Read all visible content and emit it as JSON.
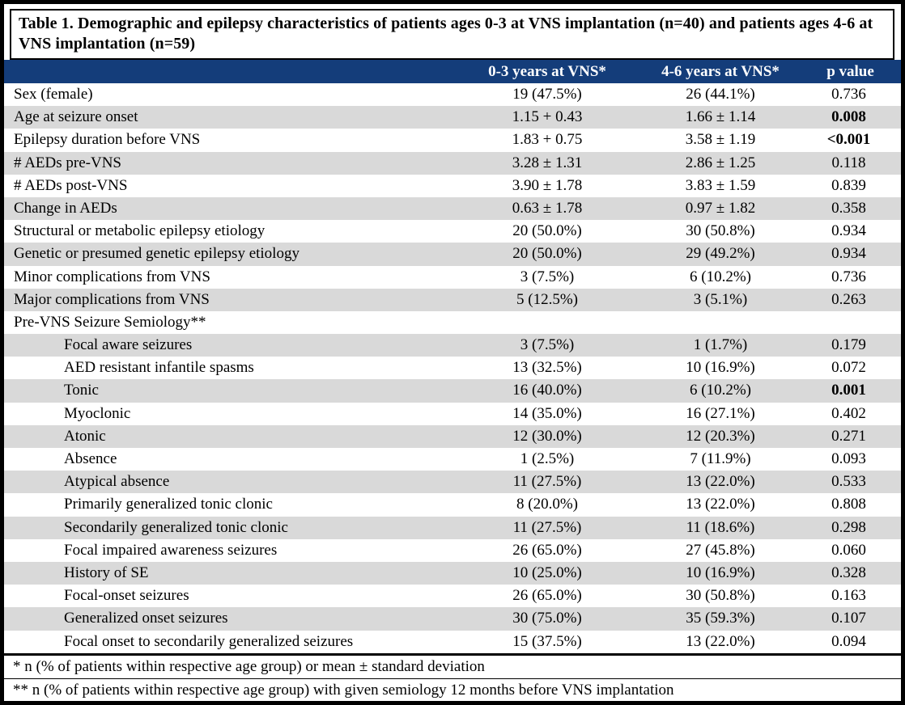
{
  "title": "Table 1. Demographic and epilepsy characteristics of patients ages 0-3 at VNS implantation (n=40) and patients ages 4-6 at VNS implantation (n=59)",
  "colors": {
    "header_bg": "#143D7A",
    "header_text": "#FFFFFF",
    "shaded_row_bg": "#D9D9D9",
    "border": "#000000"
  },
  "header": {
    "col_label": "",
    "col1": "0-3 years at VNS*",
    "col2": "4-6 years at VNS*",
    "col3": "p value"
  },
  "rows": [
    {
      "label": "Sex (female)",
      "indent": false,
      "shaded": false,
      "v1": "19 (47.5%)",
      "v2": "26 (44.1%)",
      "p": "0.736",
      "bold_p": false
    },
    {
      "label": "Age at seizure onset",
      "indent": false,
      "shaded": true,
      "v1": "1.15 + 0.43",
      "v2": "1.66 ± 1.14",
      "p": "0.008",
      "bold_p": true
    },
    {
      "label": "Epilepsy duration before VNS",
      "indent": false,
      "shaded": false,
      "v1": "1.83 + 0.75",
      "v2": "3.58 ± 1.19",
      "p": "<0.001",
      "bold_p": true
    },
    {
      "label": "# AEDs pre-VNS",
      "indent": false,
      "shaded": true,
      "v1": "3.28 ± 1.31",
      "v2": "2.86 ± 1.25",
      "p": "0.118",
      "bold_p": false
    },
    {
      "label": "# AEDs post-VNS",
      "indent": false,
      "shaded": false,
      "v1": "3.90 ± 1.78",
      "v2": "3.83 ± 1.59",
      "p": "0.839",
      "bold_p": false
    },
    {
      "label": "Change in AEDs",
      "indent": false,
      "shaded": true,
      "v1": "0.63 ± 1.78",
      "v2": "0.97 ± 1.82",
      "p": "0.358",
      "bold_p": false
    },
    {
      "label": "Structural or metabolic epilepsy etiology",
      "indent": false,
      "shaded": false,
      "v1": "20 (50.0%)",
      "v2": "30 (50.8%)",
      "p": "0.934",
      "bold_p": false
    },
    {
      "label": "Genetic or presumed genetic epilepsy etiology",
      "indent": false,
      "shaded": true,
      "v1": "20 (50.0%)",
      "v2": "29 (49.2%)",
      "p": "0.934",
      "bold_p": false
    },
    {
      "label": "Minor complications from VNS",
      "indent": false,
      "shaded": false,
      "v1": "3 (7.5%)",
      "v2": "6 (10.2%)",
      "p": "0.736",
      "bold_p": false
    },
    {
      "label": "Major complications from VNS",
      "indent": false,
      "shaded": true,
      "v1": "5 (12.5%)",
      "v2": "3 (5.1%)",
      "p": "0.263",
      "bold_p": false
    },
    {
      "label": "Pre-VNS Seizure Semiology**",
      "indent": false,
      "shaded": false,
      "v1": "",
      "v2": "",
      "p": "",
      "bold_p": false
    },
    {
      "label": "Focal aware seizures",
      "indent": true,
      "shaded": true,
      "v1": "3 (7.5%)",
      "v2": "1 (1.7%)",
      "p": "0.179",
      "bold_p": false
    },
    {
      "label": "AED resistant infantile spasms",
      "indent": true,
      "shaded": false,
      "v1": "13 (32.5%)",
      "v2": "10 (16.9%)",
      "p": "0.072",
      "bold_p": false
    },
    {
      "label": "Tonic",
      "indent": true,
      "shaded": true,
      "v1": "16 (40.0%)",
      "v2": "6 (10.2%)",
      "p": "0.001",
      "bold_p": true
    },
    {
      "label": "Myoclonic",
      "indent": true,
      "shaded": false,
      "v1": "14 (35.0%)",
      "v2": "16 (27.1%)",
      "p": "0.402",
      "bold_p": false
    },
    {
      "label": "Atonic",
      "indent": true,
      "shaded": true,
      "v1": "12 (30.0%)",
      "v2": "12 (20.3%)",
      "p": "0.271",
      "bold_p": false
    },
    {
      "label": "Absence",
      "indent": true,
      "shaded": false,
      "v1": "1 (2.5%)",
      "v2": "7 (11.9%)",
      "p": "0.093",
      "bold_p": false
    },
    {
      "label": "Atypical absence",
      "indent": true,
      "shaded": true,
      "v1": "11 (27.5%)",
      "v2": "13 (22.0%)",
      "p": "0.533",
      "bold_p": false
    },
    {
      "label": "Primarily generalized tonic clonic",
      "indent": true,
      "shaded": false,
      "v1": "8 (20.0%)",
      "v2": "13 (22.0%)",
      "p": "0.808",
      "bold_p": false
    },
    {
      "label": "Secondarily generalized tonic clonic",
      "indent": true,
      "shaded": true,
      "v1": "11 (27.5%)",
      "v2": "11 (18.6%)",
      "p": "0.298",
      "bold_p": false
    },
    {
      "label": "Focal impaired awareness seizures",
      "indent": true,
      "shaded": false,
      "v1": "26 (65.0%)",
      "v2": "27 (45.8%)",
      "p": "0.060",
      "bold_p": false
    },
    {
      "label": "History of SE",
      "indent": true,
      "shaded": true,
      "v1": "10 (25.0%)",
      "v2": "10 (16.9%)",
      "p": "0.328",
      "bold_p": false
    },
    {
      "label": "Focal-onset seizures",
      "indent": true,
      "shaded": false,
      "v1": "26 (65.0%)",
      "v2": "30 (50.8%)",
      "p": "0.163",
      "bold_p": false
    },
    {
      "label": "Generalized onset seizures",
      "indent": true,
      "shaded": true,
      "v1": "30 (75.0%)",
      "v2": "35 (59.3%)",
      "p": "0.107",
      "bold_p": false
    },
    {
      "label": "Focal onset to secondarily generalized seizures",
      "indent": true,
      "shaded": false,
      "v1": "15 (37.5%)",
      "v2": "13 (22.0%)",
      "p": "0.094",
      "bold_p": false
    }
  ],
  "footnotes": [
    "* n (% of patients within respective age group) or mean ± standard deviation",
    "** n (% of patients within respective age group) with given semiology 12 months before VNS implantation"
  ]
}
